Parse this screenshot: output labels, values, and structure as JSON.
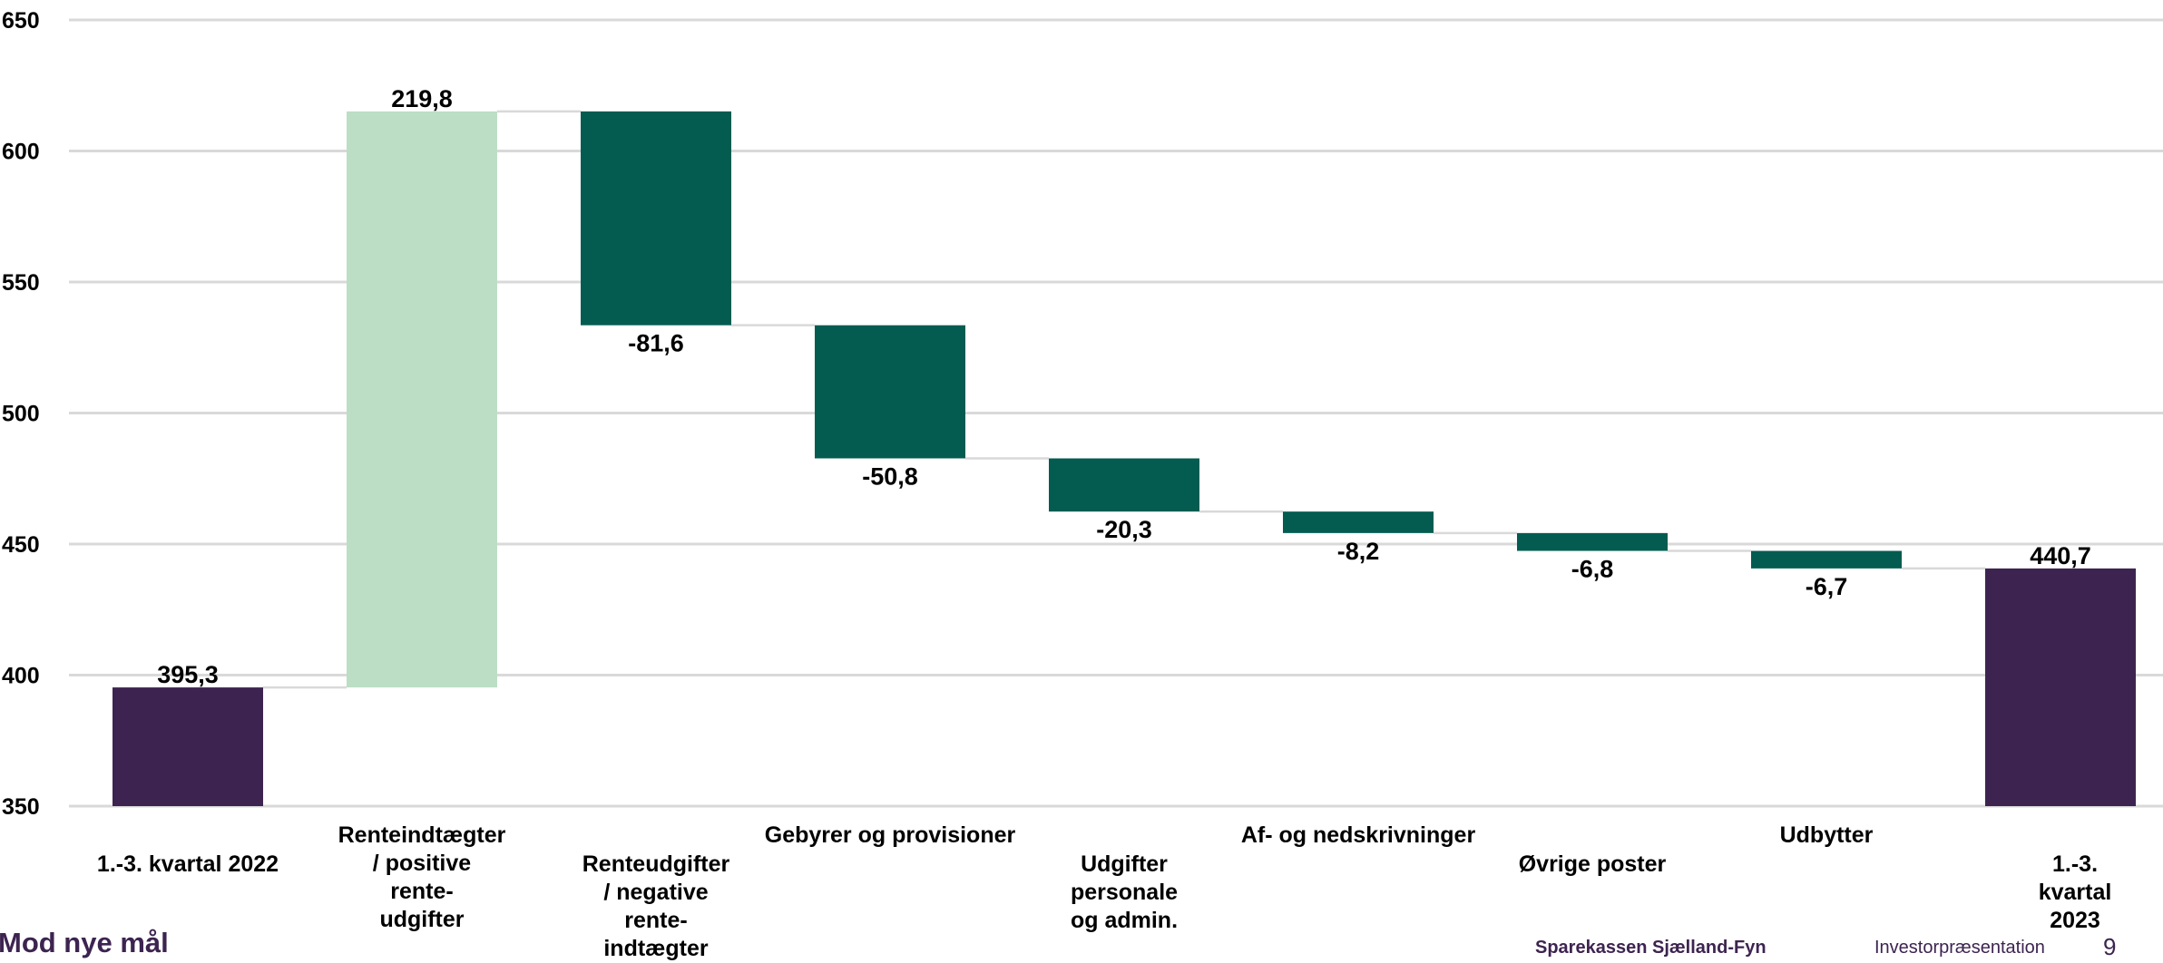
{
  "chart_data": {
    "type": "waterfall",
    "categories": [
      "1.-3. kvartal 2022",
      "Renteindtægter\n/ positive\nrente-\nudgifter",
      "Renteudgifter\n/ negative\nrente-\nindtægter",
      "Gebyrer og provisioner",
      "Udgifter\npersonale\nog admin.",
      "Af- og nedskrivninger",
      "Øvrige poster",
      "Udbytter",
      "1.-3. kvartal 2023"
    ],
    "values": [
      395.3,
      219.8,
      -81.6,
      -50.8,
      -20.3,
      -8.2,
      -6.8,
      -6.7,
      440.7
    ],
    "value_labels": [
      "395,3",
      "219,8",
      "-81,6",
      "-50,8",
      "-20,3",
      "-8,2",
      "-6,8",
      "-6,7",
      "440,7"
    ],
    "bar_kinds": [
      "total",
      "increase",
      "decrease",
      "decrease",
      "decrease",
      "decrease",
      "decrease",
      "decrease",
      "total"
    ],
    "ylim": [
      350,
      650
    ],
    "yticks": [
      "350",
      "400",
      "450",
      "500",
      "550",
      "600",
      "650"
    ],
    "grid": true,
    "colors": {
      "total": "#3d2450",
      "increase": "#bcdec5",
      "decrease": "#045c51"
    }
  },
  "footer": {
    "brand": "Mod nye mål",
    "org": "Sparekassen Sjælland-Fyn",
    "doc": "Investorpræsentation",
    "page": "9"
  }
}
